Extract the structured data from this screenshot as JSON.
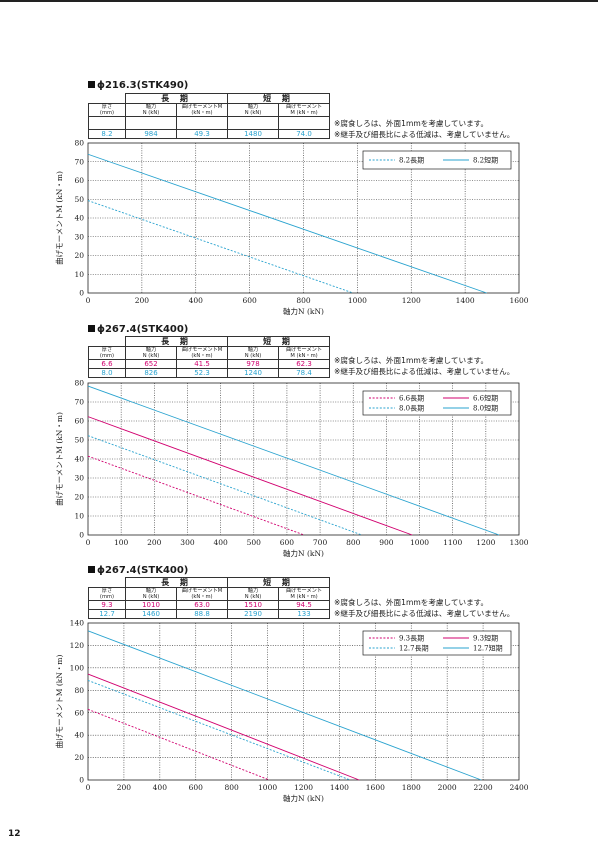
{
  "page_number": "12",
  "colors": {
    "long": "#d1006f",
    "short": "#2aa3cf",
    "text": "#1a1a1a"
  },
  "sections": [
    {
      "title": "ϕ216.3(STK490)",
      "table": {
        "group_long": "長 期",
        "group_short": "短 期",
        "headers": [
          [
            "厚さ",
            "(mm)"
          ],
          [
            "軸力",
            "N (kN)"
          ],
          [
            "曲げモーメントM",
            "(kN・m)"
          ],
          [
            "軸力",
            "N (kN)"
          ],
          [
            "曲げモーメント",
            "M (kN・m)"
          ]
        ],
        "rows": [
          {
            "color": "short",
            "cells": [
              "8.2",
              "984",
              "49.3",
              "1480",
              "74.0"
            ]
          }
        ]
      },
      "notes": [
        "※腐食しろは、外面1mmを考慮しています。",
        "※継手及び細長比による低減は、考慮していません。"
      ]
    },
    {
      "title": "ϕ267.4(STK400)",
      "table": {
        "group_long": "長 期",
        "group_short": "短 期",
        "headers": [
          [
            "厚さ",
            "(mm)"
          ],
          [
            "軸力",
            "N (kN)"
          ],
          [
            "曲げモーメントM",
            "(kN・m)"
          ],
          [
            "軸力",
            "N (kN)"
          ],
          [
            "曲げモーメント",
            "M (kN・m)"
          ]
        ],
        "rows": [
          {
            "color": "long",
            "cells": [
              "6.6",
              "652",
              "41.5",
              "978",
              "62.3"
            ]
          },
          {
            "color": "short",
            "cells": [
              "8.0",
              "826",
              "52.3",
              "1240",
              "78.4"
            ]
          }
        ]
      },
      "notes": [
        "※腐食しろは、外面1mmを考慮しています。",
        "※継手及び細長比による低減は、考慮していません。"
      ]
    },
    {
      "title": "ϕ267.4(STK400)",
      "table": {
        "group_long": "長 期",
        "group_short": "短 期",
        "headers": [
          [
            "厚さ",
            "(mm)"
          ],
          [
            "軸力",
            "N (kN)"
          ],
          [
            "曲げモーメントM",
            "(kN・m)"
          ],
          [
            "軸力",
            "N (kN)"
          ],
          [
            "曲げモーメント",
            "M (kN・m)"
          ]
        ],
        "rows": [
          {
            "color": "long",
            "cells": [
              "9.3",
              "1010",
              "63.0",
              "1510",
              "94.5"
            ]
          },
          {
            "color": "short",
            "cells": [
              "12.7",
              "1460",
              "88.8",
              "2190",
              "133"
            ]
          }
        ]
      },
      "notes": [
        "※腐食しろは、外面1mmを考慮しています。",
        "※継手及び細長比による低減は、考慮していません。"
      ]
    }
  ],
  "chart_data": [
    {
      "type": "line",
      "xlabel": "軸力N (kN)",
      "ylabel": "曲げモーメントM (kN・m)",
      "xlim": [
        0,
        1600
      ],
      "ylim": [
        0,
        80
      ],
      "xticks": [
        0,
        200,
        400,
        600,
        800,
        1000,
        1200,
        1400,
        1600
      ],
      "yticks": [
        0,
        10,
        20,
        30,
        40,
        50,
        60,
        70,
        80
      ],
      "grid": true,
      "legend": "top-right",
      "series": [
        {
          "name": "8.2長期",
          "style": "dashed",
          "color": "short",
          "x": [
            0,
            984
          ],
          "y": [
            49.3,
            0
          ]
        },
        {
          "name": "8.2短期",
          "style": "solid",
          "color": "short",
          "x": [
            0,
            1480
          ],
          "y": [
            74.0,
            0
          ]
        }
      ]
    },
    {
      "type": "line",
      "xlabel": "軸力N (kN)",
      "ylabel": "曲げモーメントM (kN・m)",
      "xlim": [
        0,
        1300
      ],
      "ylim": [
        0,
        80
      ],
      "xticks": [
        0,
        100,
        200,
        300,
        400,
        500,
        600,
        700,
        800,
        900,
        1000,
        1100,
        1200,
        1300
      ],
      "yticks": [
        0,
        10,
        20,
        30,
        40,
        50,
        60,
        70,
        80
      ],
      "grid": true,
      "legend": "top-right",
      "series": [
        {
          "name": "6.6長期",
          "style": "dashed",
          "color": "long",
          "x": [
            0,
            652
          ],
          "y": [
            41.5,
            0
          ]
        },
        {
          "name": "6.6短期",
          "style": "solid",
          "color": "long",
          "x": [
            0,
            978
          ],
          "y": [
            62.3,
            0
          ]
        },
        {
          "name": "8.0長期",
          "style": "dashed",
          "color": "short",
          "x": [
            0,
            826
          ],
          "y": [
            52.3,
            0
          ]
        },
        {
          "name": "8.0短期",
          "style": "solid",
          "color": "short",
          "x": [
            0,
            1240
          ],
          "y": [
            78.4,
            0
          ]
        }
      ]
    },
    {
      "type": "line",
      "xlabel": "軸力N (kN)",
      "ylabel": "曲げモーメントM (kN・m)",
      "xlim": [
        0,
        2400
      ],
      "ylim": [
        0,
        140
      ],
      "xticks": [
        0,
        200,
        400,
        600,
        800,
        1000,
        1200,
        1400,
        1600,
        1800,
        2000,
        2200,
        2400
      ],
      "yticks": [
        0,
        20,
        40,
        60,
        80,
        100,
        120,
        140
      ],
      "grid": true,
      "legend": "top-right",
      "series": [
        {
          "name": "9.3長期",
          "style": "dashed",
          "color": "long",
          "x": [
            0,
            1010
          ],
          "y": [
            63.0,
            0
          ]
        },
        {
          "name": "9.3短期",
          "style": "solid",
          "color": "long",
          "x": [
            0,
            1510
          ],
          "y": [
            94.5,
            0
          ]
        },
        {
          "name": "12.7長期",
          "style": "dashed",
          "color": "short",
          "x": [
            0,
            1460
          ],
          "y": [
            88.8,
            0
          ]
        },
        {
          "name": "12.7短期",
          "style": "solid",
          "color": "short",
          "x": [
            0,
            2190
          ],
          "y": [
            133,
            0
          ]
        }
      ]
    }
  ]
}
